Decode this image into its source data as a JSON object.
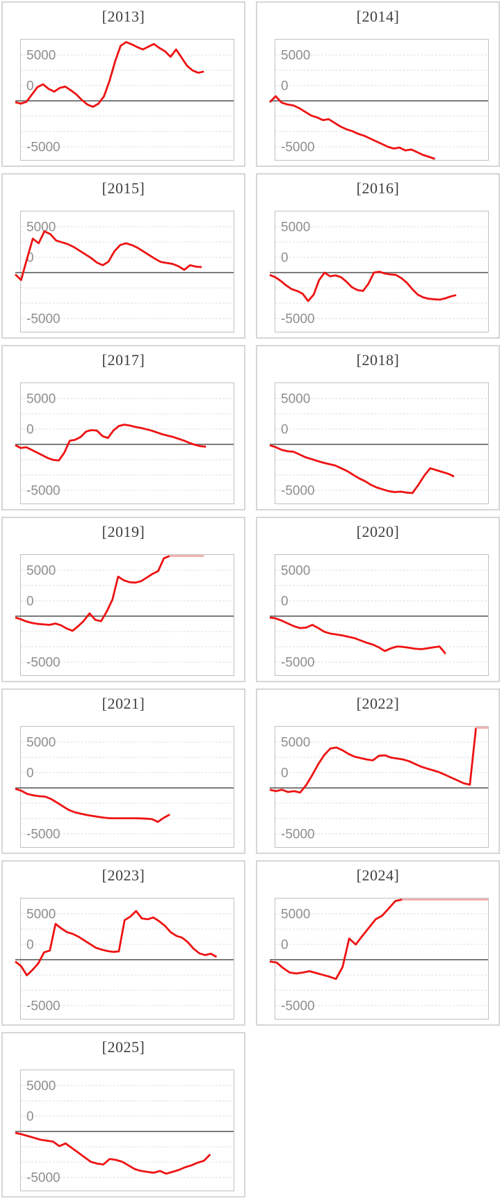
{
  "page": {
    "background": "#ffffff",
    "kind": "trellis-of-line-charts"
  },
  "axis": {
    "tick_labels": [
      "5000",
      "0",
      "-5000"
    ],
    "tick_values": [
      5000,
      0,
      -5000
    ],
    "tick_label_color": "#8e8e8e",
    "gridline_color": "#d9d9d9",
    "zero_line_color": "#7b7b7b",
    "plot_border_color": "#c0c0c0",
    "panel_border_color": "#d6d6d6",
    "title_color": "#3e3e3e",
    "y_max_visible": 6500,
    "y_min_visible": -6500,
    "gridlines_on": true
  },
  "series_style": {
    "color": "#ee1212",
    "clipped_color": "#f0a6a6",
    "width": 2.8
  },
  "chart_data": [
    {
      "year": "2013",
      "title": "[2013]",
      "type": "line",
      "legend": "none",
      "xlabel": "",
      "ylabel": "",
      "x_start": -0.026,
      "x_end": 0.86,
      "values": [
        -150,
        -300,
        -100,
        700,
        1500,
        1800,
        1300,
        1000,
        1400,
        1550,
        1150,
        700,
        100,
        -400,
        -650,
        -300,
        500,
        2200,
        4300,
        6000,
        6400,
        6150,
        5850,
        5600,
        5900,
        6200,
        5750,
        5400,
        4800,
        5600,
        4700,
        3800,
        3300,
        3050,
        3200
      ]
    },
    {
      "year": "2014",
      "title": "[2014]",
      "type": "line",
      "legend": "none",
      "xlabel": "",
      "ylabel": "",
      "x_start": -0.026,
      "x_end": 0.75,
      "values": [
        -150,
        500,
        -200,
        -400,
        -500,
        -800,
        -1200,
        -1600,
        -1800,
        -2100,
        -2000,
        -2400,
        -2800,
        -3100,
        -3300,
        -3600,
        -3800,
        -4100,
        -4400,
        -4700,
        -5000,
        -5200,
        -5100,
        -5400,
        -5300,
        -5600,
        -5900,
        -6100,
        -6600
      ]
    },
    {
      "year": "2015",
      "title": "[2015]",
      "type": "line",
      "legend": "none",
      "xlabel": "",
      "ylabel": "",
      "x_start": -0.026,
      "x_end": 0.85,
      "values": [
        -200,
        -800,
        1500,
        3700,
        3200,
        4500,
        4200,
        3500,
        3300,
        3100,
        2800,
        2400,
        2000,
        1600,
        1100,
        800,
        1200,
        2300,
        3000,
        3200,
        3000,
        2700,
        2300,
        1900,
        1500,
        1150,
        1050,
        950,
        700,
        300,
        800,
        650,
        600
      ]
    },
    {
      "year": "2016",
      "title": "[2016]",
      "type": "line",
      "legend": "none",
      "xlabel": "",
      "ylabel": "",
      "x_start": -0.026,
      "x_end": 0.85,
      "values": [
        -250,
        -500,
        -900,
        -1400,
        -1800,
        -2000,
        -2300,
        -3100,
        -2400,
        -800,
        0,
        -400,
        -300,
        -500,
        -1000,
        -1600,
        -1900,
        -2000,
        -1200,
        0,
        100,
        -100,
        -200,
        -250,
        -600,
        -1100,
        -1800,
        -2400,
        -2700,
        -2850,
        -2900,
        -2950,
        -2800,
        -2600,
        -2450
      ]
    },
    {
      "year": "2017",
      "title": "[2017]",
      "type": "line",
      "legend": "none",
      "xlabel": "",
      "ylabel": "",
      "x_start": -0.026,
      "x_end": 0.87,
      "values": [
        -100,
        -400,
        -300,
        -600,
        -900,
        -1200,
        -1500,
        -1700,
        -1750,
        -900,
        400,
        500,
        800,
        1400,
        1550,
        1500,
        900,
        700,
        1500,
        2000,
        2150,
        2050,
        1900,
        1800,
        1650,
        1500,
        1300,
        1100,
        950,
        800,
        600,
        400,
        150,
        -50,
        -200,
        -250
      ]
    },
    {
      "year": "2018",
      "title": "[2018]",
      "type": "line",
      "legend": "none",
      "xlabel": "",
      "ylabel": "",
      "x_start": -0.026,
      "x_end": 0.84,
      "values": [
        -100,
        -300,
        -600,
        -750,
        -800,
        -1100,
        -1400,
        -1600,
        -1800,
        -2000,
        -2150,
        -2300,
        -2600,
        -2900,
        -3300,
        -3700,
        -4000,
        -4400,
        -4700,
        -4900,
        -5100,
        -5200,
        -5150,
        -5250,
        -5300,
        -4400,
        -3400,
        -2600,
        -2800,
        -3000,
        -3200,
        -3500
      ]
    },
    {
      "year": "2019",
      "title": "[2019]",
      "type": "line",
      "legend": "none",
      "xlabel": "",
      "ylabel": "",
      "x_start": -0.026,
      "x_end": 0.86,
      "values": [
        -150,
        -350,
        -600,
        -750,
        -850,
        -900,
        -950,
        -800,
        -1000,
        -1350,
        -1600,
        -1100,
        -500,
        300,
        -400,
        -550,
        500,
        1800,
        4300,
        3900,
        3700,
        3650,
        3800,
        4200,
        4600,
        4900,
        6300,
        7200,
        7200,
        7200,
        7200,
        7200,
        7200,
        7200
      ]
    },
    {
      "year": "2020",
      "title": "[2020]",
      "type": "line",
      "legend": "none",
      "xlabel": "",
      "ylabel": "",
      "x_start": -0.026,
      "x_end": 0.8,
      "values": [
        -150,
        -250,
        -500,
        -800,
        -1100,
        -1300,
        -1250,
        -950,
        -1300,
        -1700,
        -1900,
        -2000,
        -2100,
        -2250,
        -2400,
        -2650,
        -2900,
        -3100,
        -3400,
        -3800,
        -3500,
        -3300,
        -3350,
        -3450,
        -3550,
        -3600,
        -3500,
        -3400,
        -3300,
        -4100
      ]
    },
    {
      "year": "2021",
      "title": "[2021]",
      "type": "line",
      "legend": "none",
      "xlabel": "",
      "ylabel": "",
      "x_start": -0.026,
      "x_end": 0.7,
      "values": [
        -100,
        -300,
        -650,
        -800,
        -900,
        -950,
        -1200,
        -1600,
        -2000,
        -2400,
        -2650,
        -2800,
        -2950,
        -3050,
        -3150,
        -3250,
        -3300,
        -3300,
        -3300,
        -3300,
        -3300,
        -3320,
        -3350,
        -3400,
        -3700,
        -3250,
        -2900
      ]
    },
    {
      "year": "2022",
      "title": "[2022]",
      "type": "line",
      "legend": "none",
      "xlabel": "",
      "ylabel": "",
      "x_start": -0.026,
      "x_end": 1.0,
      "values": [
        -200,
        -350,
        -200,
        -450,
        -350,
        -500,
        300,
        1400,
        2600,
        3600,
        4300,
        4400,
        4100,
        3700,
        3400,
        3250,
        3100,
        3000,
        3500,
        3550,
        3300,
        3200,
        3100,
        2900,
        2600,
        2300,
        2100,
        1900,
        1700,
        1400,
        1100,
        800,
        500,
        350,
        7200,
        7200,
        7200
      ]
    },
    {
      "year": "2023",
      "title": "[2023]",
      "type": "line",
      "legend": "none",
      "xlabel": "",
      "ylabel": "",
      "x_start": -0.026,
      "x_end": 0.92,
      "values": [
        -200,
        -700,
        -1700,
        -1100,
        -400,
        800,
        1000,
        3900,
        3400,
        3000,
        2800,
        2500,
        2100,
        1700,
        1300,
        1100,
        950,
        850,
        900,
        4300,
        4700,
        5300,
        4500,
        4400,
        4600,
        4200,
        3700,
        3000,
        2600,
        2400,
        1900,
        1200,
        700,
        500,
        650,
        300
      ]
    },
    {
      "year": "2024",
      "title": "[2024]",
      "type": "line",
      "legend": "none",
      "xlabel": "",
      "ylabel": "",
      "x_start": -0.026,
      "x_end": 1.0,
      "values": [
        -200,
        -300,
        -900,
        -1400,
        -1500,
        -1400,
        -1250,
        -1450,
        -1650,
        -1850,
        -2100,
        -800,
        2300,
        1650,
        2600,
        3500,
        4400,
        4800,
        5600,
        6400,
        7200,
        7200,
        7200,
        7200,
        7200,
        7200,
        7200,
        7200,
        7200,
        7200,
        7200,
        7200,
        7200,
        7200
      ]
    },
    {
      "year": "2025",
      "title": "[2025]",
      "type": "line",
      "legend": "none",
      "xlabel": "",
      "ylabel": "",
      "x_start": -0.026,
      "x_end": 0.89,
      "values": [
        -150,
        -300,
        -500,
        -700,
        -900,
        -1000,
        -1100,
        -1600,
        -1300,
        -1800,
        -2300,
        -2800,
        -3300,
        -3500,
        -3600,
        -3000,
        -3100,
        -3300,
        -3700,
        -4100,
        -4300,
        -4400,
        -4500,
        -4300,
        -4600,
        -4400,
        -4200,
        -3900,
        -3700,
        -3400,
        -3200,
        -2500
      ]
    }
  ]
}
